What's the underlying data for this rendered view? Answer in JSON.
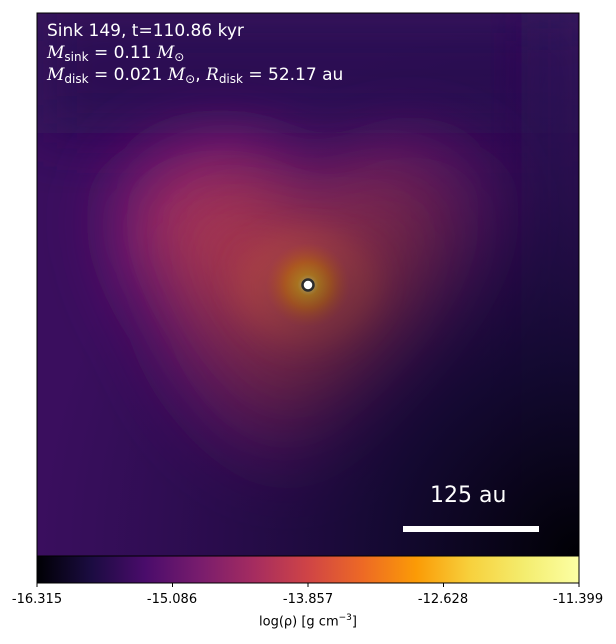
{
  "panel": {
    "sink_line": "Sink 149, t=110.86 kyr",
    "msink_symbol": "M",
    "msink_sub": "sink",
    "msink_value": " = 0.11 ",
    "msun_symbol": "M",
    "msun_sub": "⊙",
    "mdisk_symbol": "M",
    "mdisk_sub": "disk",
    "mdisk_value": " = 0.021 ",
    "mdisk_sep": ", ",
    "rdisk_symbol": "R",
    "rdisk_sub": "disk",
    "rdisk_value": " = 52.17 au"
  },
  "scalebar": {
    "label": "125 au"
  },
  "colorbar": {
    "ticks": [
      "-16.315",
      "-15.086",
      "-13.857",
      "-12.628",
      "-11.399"
    ],
    "label_main": "log(ρ) [g cm",
    "label_exp": "−3",
    "label_end": "]",
    "colormap": "inferno"
  },
  "colors": {
    "background": "#3a0e5e",
    "core": "#fcae12",
    "scalebar": "#ffffff"
  },
  "icons": {
    "sink_marker": "sink-particle-icon"
  }
}
